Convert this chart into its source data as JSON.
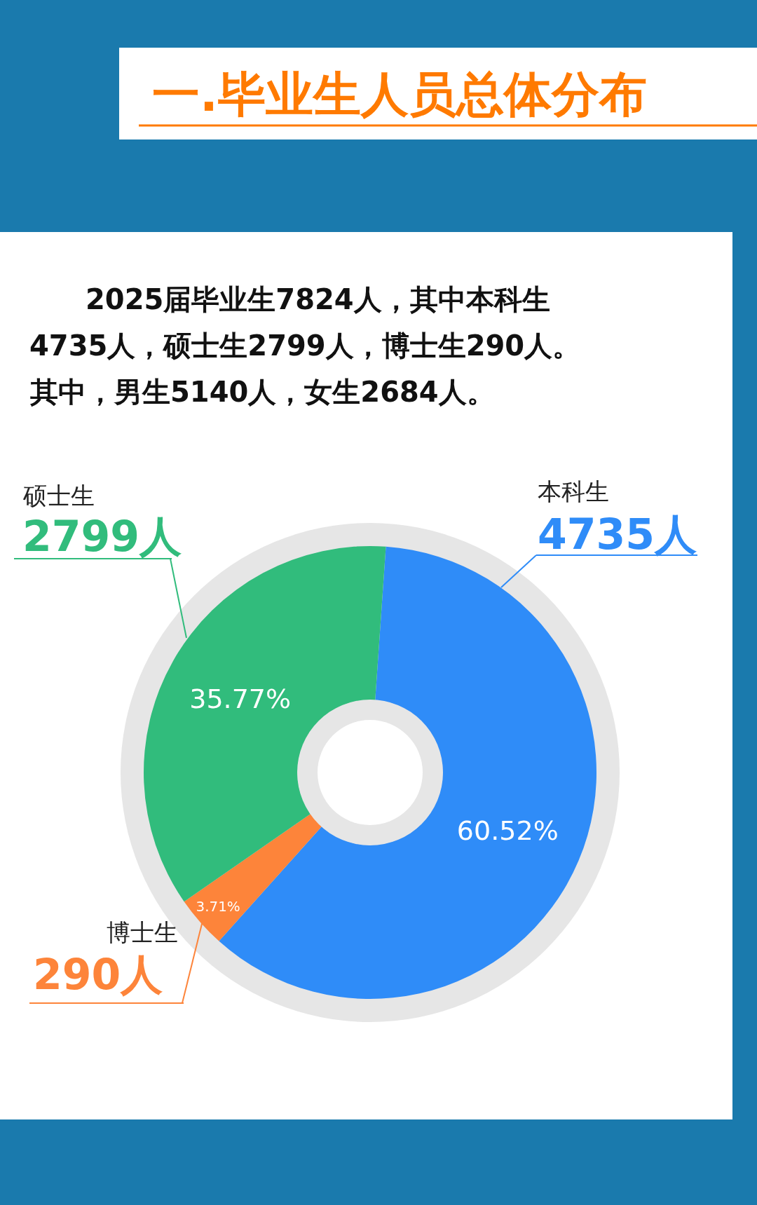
{
  "chart_data": {
    "type": "donut",
    "title": "一.毕业生人员总体分布",
    "categories": [
      "本科生",
      "博士生",
      "硕士生"
    ],
    "values": [
      60.52,
      3.71,
      35.77
    ],
    "colors": [
      "#2f8cf8",
      "#fd843a",
      "#31bc7c"
    ],
    "value_labels": [
      "60.52%",
      "3.71%",
      "35.77%"
    ],
    "annotations": [
      "2025届毕业生7824人，其中本科生4735人，硕士生2799人，博士生290人。其中，男生5140人，女生2684人。",
      "4735人",
      "290人",
      "2799人"
    ]
  }
}
